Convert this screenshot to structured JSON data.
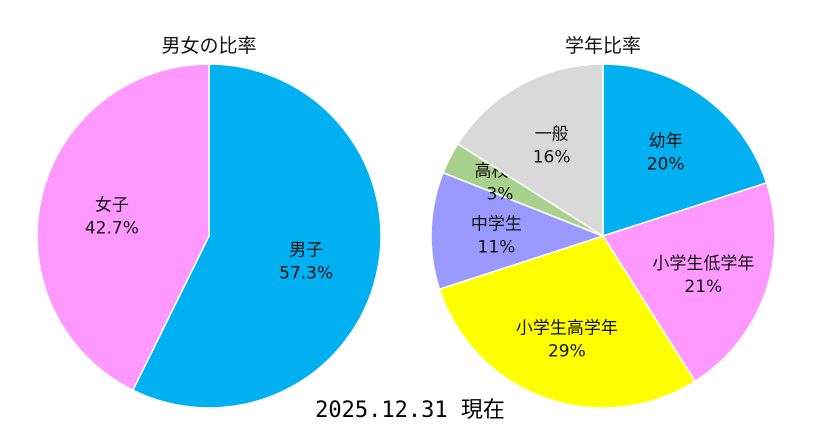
{
  "chart_data": [
    {
      "type": "pie",
      "title": "男女の比率",
      "slices": [
        {
          "label": "男子",
          "value": 57.3,
          "value_label": "57.3%",
          "color": "#00B0F0"
        },
        {
          "label": "女子",
          "value": 42.7,
          "value_label": "42.7%",
          "color": "#FF99FF"
        }
      ]
    },
    {
      "type": "pie",
      "title": "学年比率",
      "slices": [
        {
          "label": "幼年",
          "value": 20,
          "value_label": "20%",
          "color": "#00B0F0"
        },
        {
          "label": "小学生低学年",
          "value": 21,
          "value_label": "21%",
          "color": "#FF99FF"
        },
        {
          "label": "小学生高学年",
          "value": 29,
          "value_label": "29%",
          "color": "#FFFF00"
        },
        {
          "label": "中学生",
          "value": 11,
          "value_label": "11%",
          "color": "#9999FF"
        },
        {
          "label": "高校生",
          "value": 3,
          "value_label": "3%",
          "color": "#A9D18E"
        },
        {
          "label": "一般",
          "value": 16,
          "value_label": "16%",
          "color": "#D9D9D9"
        }
      ]
    }
  ],
  "footer": {
    "date_text": "2025.12.31 現在"
  }
}
